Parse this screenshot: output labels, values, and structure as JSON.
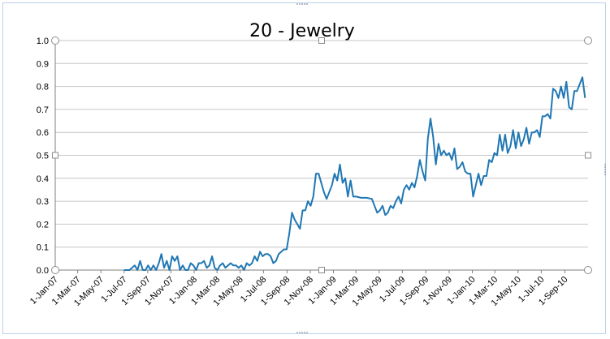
{
  "chart_data": {
    "type": "line",
    "title": "20 - Jewelry",
    "xlabel": "",
    "ylabel": "",
    "ylim": [
      0,
      1.0
    ],
    "grid": true,
    "legend": "none",
    "series_color": "#1f77b4",
    "y_ticks": [
      "0.0",
      "0.1",
      "0.2",
      "0.3",
      "0.4",
      "0.5",
      "0.6",
      "0.7",
      "0.8",
      "0.9",
      "1.0"
    ],
    "x_ticks": [
      "1-Jan-07",
      "1-Mar-07",
      "1-May-07",
      "1-Jul-07",
      "1-Sep-07",
      "1-Nov-07",
      "1-Jan-08",
      "1-Mar-08",
      "1-May-08",
      "1-Jul-08",
      "1-Sep-08",
      "1-Nov-08",
      "1-Jan-09",
      "1-Mar-09",
      "1-May-09",
      "1-Jul-09",
      "1-Sep-09",
      "1-Nov-09",
      "1-Jan-10",
      "1-Mar-10",
      "1-May-10",
      "1-Jul-10",
      "1-Sep-10"
    ],
    "x_start": "1-Jan-07",
    "x_end": "1-Nov-10",
    "series": [
      {
        "values": [
          [
            "1-Jul-07",
            0.0
          ],
          [
            "15-Jul-07",
            0.0
          ],
          [
            "29-Jul-07",
            0.02
          ],
          [
            "5-Aug-07",
            0.0
          ],
          [
            "12-Aug-07",
            0.04
          ],
          [
            "19-Aug-07",
            0.0
          ],
          [
            "26-Aug-07",
            0.0
          ],
          [
            "2-Sep-07",
            0.02
          ],
          [
            "9-Sep-07",
            0.0
          ],
          [
            "16-Sep-07",
            0.02
          ],
          [
            "23-Sep-07",
            0.0
          ],
          [
            "30-Sep-07",
            0.03
          ],
          [
            "7-Oct-07",
            0.07
          ],
          [
            "14-Oct-07",
            0.01
          ],
          [
            "21-Oct-07",
            0.04
          ],
          [
            "28-Oct-07",
            0.0
          ],
          [
            "4-Nov-07",
            0.06
          ],
          [
            "11-Nov-07",
            0.04
          ],
          [
            "18-Nov-07",
            0.06
          ],
          [
            "25-Nov-07",
            0.0
          ],
          [
            "2-Dec-07",
            0.02
          ],
          [
            "9-Dec-07",
            0.0
          ],
          [
            "16-Dec-07",
            0.0
          ],
          [
            "23-Dec-07",
            0.03
          ],
          [
            "30-Dec-07",
            0.02
          ],
          [
            "6-Jan-08",
            0.0
          ],
          [
            "13-Jan-08",
            0.03
          ],
          [
            "20-Jan-08",
            0.03
          ],
          [
            "27-Jan-08",
            0.04
          ],
          [
            "3-Feb-08",
            0.01
          ],
          [
            "10-Feb-08",
            0.02
          ],
          [
            "17-Feb-08",
            0.06
          ],
          [
            "24-Feb-08",
            0.01
          ],
          [
            "2-Mar-08",
            0.0
          ],
          [
            "9-Mar-08",
            0.02
          ],
          [
            "16-Mar-08",
            0.03
          ],
          [
            "23-Mar-08",
            0.01
          ],
          [
            "30-Mar-08",
            0.02
          ],
          [
            "6-Apr-08",
            0.03
          ],
          [
            "13-Apr-08",
            0.02
          ],
          [
            "20-Apr-08",
            0.02
          ],
          [
            "27-Apr-08",
            0.01
          ],
          [
            "4-May-08",
            0.02
          ],
          [
            "11-May-08",
            0.0
          ],
          [
            "18-May-08",
            0.03
          ],
          [
            "25-May-08",
            0.02
          ],
          [
            "1-Jun-08",
            0.03
          ],
          [
            "8-Jun-08",
            0.06
          ],
          [
            "15-Jun-08",
            0.04
          ],
          [
            "22-Jun-08",
            0.08
          ],
          [
            "29-Jun-08",
            0.06
          ],
          [
            "6-Jul-08",
            0.07
          ],
          [
            "13-Jul-08",
            0.07
          ],
          [
            "20-Jul-08",
            0.06
          ],
          [
            "27-Jul-08",
            0.03
          ],
          [
            "3-Aug-08",
            0.04
          ],
          [
            "10-Aug-08",
            0.07
          ],
          [
            "17-Aug-08",
            0.08
          ],
          [
            "24-Aug-08",
            0.09
          ],
          [
            "31-Aug-08",
            0.09
          ],
          [
            "7-Sep-08",
            0.16
          ],
          [
            "14-Sep-08",
            0.25
          ],
          [
            "21-Sep-08",
            0.22
          ],
          [
            "28-Sep-08",
            0.2
          ],
          [
            "5-Oct-08",
            0.18
          ],
          [
            "12-Oct-08",
            0.26
          ],
          [
            "19-Oct-08",
            0.26
          ],
          [
            "26-Oct-08",
            0.3
          ],
          [
            "2-Nov-08",
            0.28
          ],
          [
            "9-Nov-08",
            0.32
          ],
          [
            "16-Nov-08",
            0.42
          ],
          [
            "23-Nov-08",
            0.42
          ],
          [
            "30-Nov-08",
            0.38
          ],
          [
            "7-Dec-08",
            0.34
          ],
          [
            "14-Dec-08",
            0.31
          ],
          [
            "21-Dec-08",
            0.34
          ],
          [
            "28-Dec-08",
            0.37
          ],
          [
            "4-Jan-09",
            0.42
          ],
          [
            "11-Jan-09",
            0.39
          ],
          [
            "18-Jan-09",
            0.46
          ],
          [
            "25-Jan-09",
            0.38
          ],
          [
            "1-Feb-09",
            0.4
          ],
          [
            "8-Feb-09",
            0.32
          ],
          [
            "15-Feb-09",
            0.39
          ],
          [
            "22-Feb-09",
            0.32
          ],
          [
            "1-Mar-09",
            0.32
          ],
          [
            "15-Mar-09",
            0.315
          ],
          [
            "29-Mar-09",
            0.315
          ],
          [
            "12-Apr-09",
            0.31
          ],
          [
            "19-Apr-09",
            0.28
          ],
          [
            "26-Apr-09",
            0.25
          ],
          [
            "3-May-09",
            0.26
          ],
          [
            "10-May-09",
            0.28
          ],
          [
            "17-May-09",
            0.24
          ],
          [
            "24-May-09",
            0.25
          ],
          [
            "31-May-09",
            0.28
          ],
          [
            "7-Jun-09",
            0.27
          ],
          [
            "14-Jun-09",
            0.3
          ],
          [
            "21-Jun-09",
            0.32
          ],
          [
            "28-Jun-09",
            0.29
          ],
          [
            "5-Jul-09",
            0.35
          ],
          [
            "12-Jul-09",
            0.37
          ],
          [
            "19-Jul-09",
            0.35
          ],
          [
            "26-Jul-09",
            0.38
          ],
          [
            "2-Aug-09",
            0.36
          ],
          [
            "9-Aug-09",
            0.41
          ],
          [
            "16-Aug-09",
            0.48
          ],
          [
            "23-Aug-09",
            0.43
          ],
          [
            "30-Aug-09",
            0.39
          ],
          [
            "6-Sep-09",
            0.57
          ],
          [
            "13-Sep-09",
            0.66
          ],
          [
            "20-Sep-09",
            0.58
          ],
          [
            "27-Sep-09",
            0.46
          ],
          [
            "4-Oct-09",
            0.55
          ],
          [
            "11-Oct-09",
            0.5
          ],
          [
            "18-Oct-09",
            0.52
          ],
          [
            "25-Oct-09",
            0.5
          ],
          [
            "1-Nov-09",
            0.51
          ],
          [
            "8-Nov-09",
            0.48
          ],
          [
            "15-Nov-09",
            0.53
          ],
          [
            "22-Nov-09",
            0.44
          ],
          [
            "29-Nov-09",
            0.45
          ],
          [
            "6-Dec-09",
            0.47
          ],
          [
            "13-Dec-09",
            0.43
          ],
          [
            "20-Dec-09",
            0.42
          ],
          [
            "27-Dec-09",
            0.42
          ],
          [
            "3-Jan-10",
            0.32
          ],
          [
            "10-Jan-10",
            0.37
          ],
          [
            "17-Jan-10",
            0.42
          ],
          [
            "24-Jan-10",
            0.37
          ],
          [
            "31-Jan-10",
            0.41
          ],
          [
            "7-Feb-10",
            0.41
          ],
          [
            "14-Feb-10",
            0.48
          ],
          [
            "21-Feb-10",
            0.47
          ],
          [
            "28-Feb-10",
            0.51
          ],
          [
            "7-Mar-10",
            0.5
          ],
          [
            "14-Mar-10",
            0.59
          ],
          [
            "21-Mar-10",
            0.52
          ],
          [
            "28-Mar-10",
            0.59
          ],
          [
            "4-Apr-10",
            0.51
          ],
          [
            "11-Apr-10",
            0.54
          ],
          [
            "18-Apr-10",
            0.61
          ],
          [
            "25-Apr-10",
            0.53
          ],
          [
            "2-May-10",
            0.6
          ],
          [
            "9-May-10",
            0.54
          ],
          [
            "16-May-10",
            0.57
          ],
          [
            "23-May-10",
            0.62
          ],
          [
            "30-May-10",
            0.55
          ],
          [
            "6-Jun-10",
            0.6
          ],
          [
            "13-Jun-10",
            0.6
          ],
          [
            "20-Jun-10",
            0.61
          ],
          [
            "27-Jun-10",
            0.58
          ],
          [
            "4-Jul-10",
            0.67
          ],
          [
            "11-Jul-10",
            0.67
          ],
          [
            "18-Jul-10",
            0.68
          ],
          [
            "25-Jul-10",
            0.66
          ],
          [
            "1-Aug-10",
            0.79
          ],
          [
            "8-Aug-10",
            0.78
          ],
          [
            "15-Aug-10",
            0.75
          ],
          [
            "22-Aug-10",
            0.8
          ],
          [
            "29-Aug-10",
            0.75
          ],
          [
            "5-Sep-10",
            0.82
          ],
          [
            "12-Sep-10",
            0.71
          ],
          [
            "19-Sep-10",
            0.7
          ],
          [
            "26-Sep-10",
            0.78
          ],
          [
            "3-Oct-10",
            0.78
          ],
          [
            "10-Oct-10",
            0.81
          ],
          [
            "17-Oct-10",
            0.84
          ],
          [
            "24-Oct-10",
            0.75
          ]
        ]
      }
    ]
  }
}
